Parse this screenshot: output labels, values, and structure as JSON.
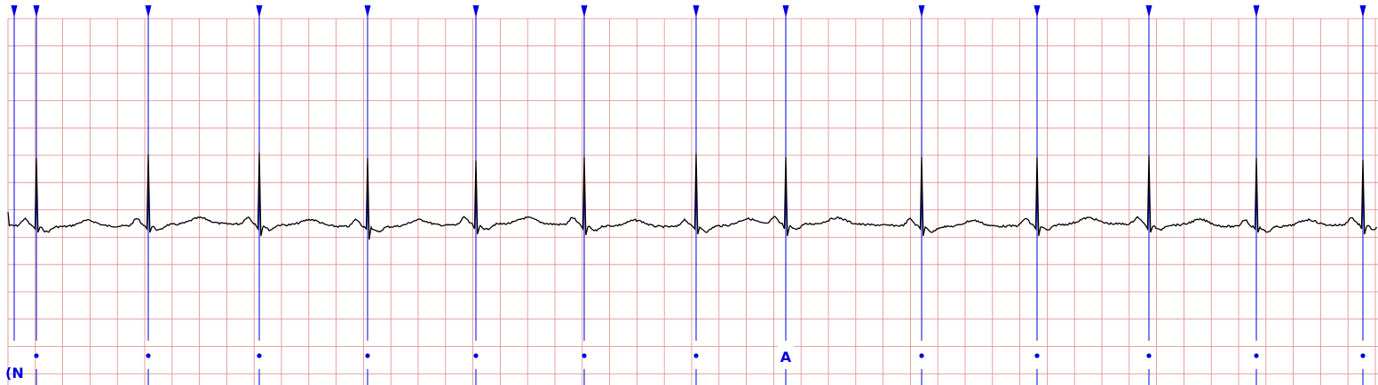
{
  "chart_data": {
    "type": "line",
    "title": "",
    "xlabel": "",
    "ylabel": "",
    "grid": true,
    "colors": {
      "grid": "#e08a8a",
      "annotation": "#0000dd",
      "trace": "#000000"
    },
    "beats": [
      {
        "x": 41,
        "label": "•"
      },
      {
        "x": 167,
        "label": "•"
      },
      {
        "x": 292,
        "label": "•"
      },
      {
        "x": 414,
        "label": "•"
      },
      {
        "x": 536,
        "label": "•"
      },
      {
        "x": 658,
        "label": "•"
      },
      {
        "x": 784,
        "label": "•"
      },
      {
        "x": 885,
        "label": "A"
      },
      {
        "x": 1038,
        "label": "•"
      },
      {
        "x": 1168,
        "label": "•"
      },
      {
        "x": 1294,
        "label": "•"
      },
      {
        "x": 1415,
        "label": "•"
      },
      {
        "x": 1535,
        "label": "•"
      }
    ],
    "rhythm_markers": [
      {
        "x": 16,
        "label": "(N"
      }
    ]
  }
}
